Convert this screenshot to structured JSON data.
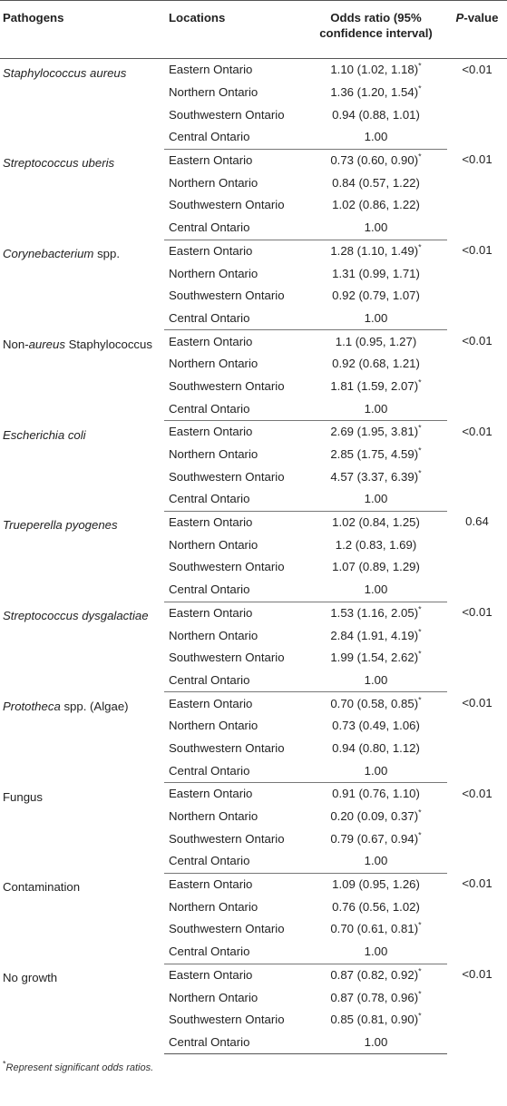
{
  "headers": {
    "pathogens": "Pathogens",
    "locations": "Locations",
    "odds_ratio": "Odds ratio (95% confidence interval)",
    "p_value_italic": "P",
    "p_value_rest": "-value"
  },
  "groups": [
    {
      "pathogen_parts": [
        {
          "text": "Staphylococcus aureus",
          "italic": true
        }
      ],
      "p_value": "<0.01",
      "rows": [
        {
          "location": "Eastern Ontario",
          "odds": "1.10 (1.02, 1.18)",
          "sig": true
        },
        {
          "location": "Northern Ontario",
          "odds": "1.36 (1.20, 1.54)",
          "sig": true
        },
        {
          "location": "Southwestern Ontario",
          "odds": "0.94 (0.88, 1.01)",
          "sig": false
        },
        {
          "location": "Central Ontario",
          "odds": "1.00",
          "sig": false
        }
      ]
    },
    {
      "pathogen_parts": [
        {
          "text": "Streptococcus uberis",
          "italic": true
        }
      ],
      "p_value": "<0.01",
      "rows": [
        {
          "location": "Eastern Ontario",
          "odds": "0.73 (0.60, 0.90)",
          "sig": true
        },
        {
          "location": "Northern Ontario",
          "odds": "0.84 (0.57, 1.22)",
          "sig": false
        },
        {
          "location": "Southwestern Ontario",
          "odds": "1.02 (0.86, 1.22)",
          "sig": false
        },
        {
          "location": "Central Ontario",
          "odds": "1.00",
          "sig": false
        }
      ]
    },
    {
      "pathogen_parts": [
        {
          "text": "Corynebacterium",
          "italic": true
        },
        {
          "text": " spp.",
          "italic": false
        }
      ],
      "p_value": "<0.01",
      "rows": [
        {
          "location": "Eastern Ontario",
          "odds": "1.28 (1.10, 1.49)",
          "sig": true
        },
        {
          "location": "Northern Ontario",
          "odds": "1.31 (0.99, 1.71)",
          "sig": false
        },
        {
          "location": "Southwestern Ontario",
          "odds": "0.92 (0.79, 1.07)",
          "sig": false
        },
        {
          "location": "Central Ontario",
          "odds": "1.00",
          "sig": false
        }
      ]
    },
    {
      "pathogen_parts": [
        {
          "text": "Non-",
          "italic": false
        },
        {
          "text": "aureus",
          "italic": true
        },
        {
          "text": " Staphylococcus",
          "italic": false
        }
      ],
      "p_value": "<0.01",
      "rows": [
        {
          "location": "Eastern Ontario",
          "odds": "1.1 (0.95, 1.27)",
          "sig": false
        },
        {
          "location": "Northern Ontario",
          "odds": "0.92 (0.68, 1.21)",
          "sig": false
        },
        {
          "location": "Southwestern Ontario",
          "odds": "1.81 (1.59, 2.07)",
          "sig": true
        },
        {
          "location": "Central Ontario",
          "odds": "1.00",
          "sig": false
        }
      ]
    },
    {
      "pathogen_parts": [
        {
          "text": "Escherichia coli",
          "italic": true
        }
      ],
      "p_value": "<0.01",
      "rows": [
        {
          "location": "Eastern Ontario",
          "odds": "2.69 (1.95, 3.81)",
          "sig": true
        },
        {
          "location": "Northern Ontario",
          "odds": "2.85 (1.75, 4.59)",
          "sig": true
        },
        {
          "location": "Southwestern Ontario",
          "odds": "4.57 (3.37, 6.39)",
          "sig": true
        },
        {
          "location": "Central Ontario",
          "odds": "1.00",
          "sig": false
        }
      ]
    },
    {
      "pathogen_parts": [
        {
          "text": "Trueperella pyogenes",
          "italic": true
        }
      ],
      "p_value": "0.64",
      "rows": [
        {
          "location": "Eastern Ontario",
          "odds": "1.02 (0.84, 1.25)",
          "sig": false
        },
        {
          "location": "Northern Ontario",
          "odds": "1.2 (0.83, 1.69)",
          "sig": false
        },
        {
          "location": "Southwestern Ontario",
          "odds": "1.07 (0.89, 1.29)",
          "sig": false
        },
        {
          "location": "Central Ontario",
          "odds": "1.00",
          "sig": false
        }
      ]
    },
    {
      "pathogen_parts": [
        {
          "text": "Streptococcus dysgalactiae",
          "italic": true
        }
      ],
      "p_value": "<0.01",
      "rows": [
        {
          "location": "Eastern Ontario",
          "odds": "1.53 (1.16, 2.05)",
          "sig": true
        },
        {
          "location": "Northern Ontario",
          "odds": "2.84 (1.91, 4.19)",
          "sig": true
        },
        {
          "location": "Southwestern Ontario",
          "odds": "1.99 (1.54, 2.62)",
          "sig": true
        },
        {
          "location": "Central Ontario",
          "odds": "1.00",
          "sig": false
        }
      ]
    },
    {
      "pathogen_parts": [
        {
          "text": "Prototheca",
          "italic": true
        },
        {
          "text": " spp. (Algae)",
          "italic": false
        }
      ],
      "p_value": "<0.01",
      "rows": [
        {
          "location": "Eastern Ontario",
          "odds": "0.70 (0.58, 0.85)",
          "sig": true
        },
        {
          "location": "Northern Ontario",
          "odds": "0.73 (0.49, 1.06)",
          "sig": false
        },
        {
          "location": "Southwestern Ontario",
          "odds": "0.94 (0.80, 1.12)",
          "sig": false
        },
        {
          "location": "Central Ontario",
          "odds": "1.00",
          "sig": false
        }
      ]
    },
    {
      "pathogen_parts": [
        {
          "text": "Fungus",
          "italic": false
        }
      ],
      "p_value": "<0.01",
      "rows": [
        {
          "location": "Eastern Ontario",
          "odds": "0.91 (0.76, 1.10)",
          "sig": false
        },
        {
          "location": "Northern Ontario",
          "odds": "0.20 (0.09, 0.37)",
          "sig": true
        },
        {
          "location": "Southwestern Ontario",
          "odds": "0.79 (0.67, 0.94)",
          "sig": true
        },
        {
          "location": "Central Ontario",
          "odds": "1.00",
          "sig": false
        }
      ]
    },
    {
      "pathogen_parts": [
        {
          "text": "Contamination",
          "italic": false
        }
      ],
      "p_value": "<0.01",
      "rows": [
        {
          "location": "Eastern Ontario",
          "odds": "1.09 (0.95, 1.26)",
          "sig": false
        },
        {
          "location": "Northern Ontario",
          "odds": "0.76 (0.56, 1.02)",
          "sig": false
        },
        {
          "location": "Southwestern Ontario",
          "odds": "0.70 (0.61, 0.81)",
          "sig": true
        },
        {
          "location": "Central Ontario",
          "odds": "1.00",
          "sig": false
        }
      ]
    },
    {
      "pathogen_parts": [
        {
          "text": "No growth",
          "italic": false
        }
      ],
      "p_value": "<0.01",
      "rows": [
        {
          "location": "Eastern Ontario",
          "odds": "0.87 (0.82, 0.92)",
          "sig": true
        },
        {
          "location": "Northern Ontario",
          "odds": "0.87 (0.78, 0.96)",
          "sig": true
        },
        {
          "location": "Southwestern Ontario",
          "odds": "0.85 (0.81, 0.90)",
          "sig": true
        },
        {
          "location": "Central Ontario",
          "odds": "1.00",
          "sig": false
        }
      ]
    }
  ],
  "asterisk": "*",
  "footnote": "Represent significant odds ratios."
}
